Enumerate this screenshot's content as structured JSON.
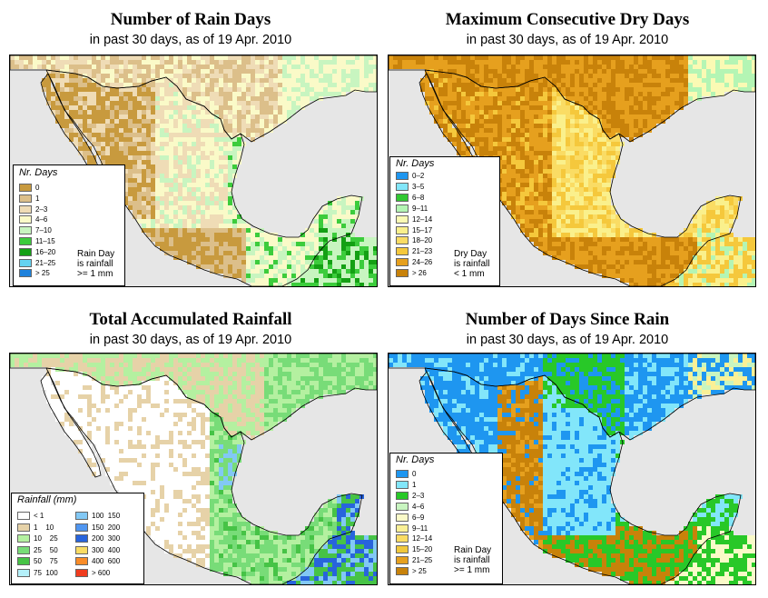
{
  "colors": {
    "ocean": "#e6e6e6",
    "land_outside": "#e6e6e6",
    "border": "#000000"
  },
  "panels": [
    {
      "id": "rain_days",
      "title": "Number of Rain Days",
      "subtitle": "in past 30 days, as of  19 Apr. 2010",
      "legend_title": "Nr. Days",
      "legend_items": [
        {
          "label": "0",
          "color": "#c89a3e"
        },
        {
          "label": "1",
          "color": "#dcbf8a"
        },
        {
          "label": "2–3",
          "color": "#efdcb6"
        },
        {
          "label": "4–6",
          "color": "#fafac8"
        },
        {
          "label": "7–10",
          "color": "#c8f5c0"
        },
        {
          "label": "11–15",
          "color": "#3ccc3c"
        },
        {
          "label": "16–20",
          "color": "#14a014"
        },
        {
          "label": "21–25",
          "color": "#64d2f0"
        },
        {
          "label": "> 25",
          "color": "#1e82dc"
        }
      ],
      "note": [
        "Rain Day",
        "is rainfall",
        ">= 1 mm"
      ]
    },
    {
      "id": "max_dry_days",
      "title": "Maximum Consecutive Dry Days",
      "subtitle": "in past 30 days, as of  19 Apr. 2010",
      "legend_title": "Nr. Days",
      "legend_items": [
        {
          "label": "0–2",
          "color": "#1e96f0"
        },
        {
          "label": "3–5",
          "color": "#82e6fa"
        },
        {
          "label": "6–8",
          "color": "#32c832"
        },
        {
          "label": "9–11",
          "color": "#b4f5b4"
        },
        {
          "label": "12–14",
          "color": "#fafab4"
        },
        {
          "label": "15–17",
          "color": "#faf08c"
        },
        {
          "label": "18–20",
          "color": "#fadc64"
        },
        {
          "label": "21–23",
          "color": "#f5c83c"
        },
        {
          "label": "24–26",
          "color": "#e6a01e"
        },
        {
          "label": "> 26",
          "color": "#c8820a"
        }
      ],
      "note": [
        "Dry Day",
        "is rainfall",
        "< 1 mm"
      ]
    },
    {
      "id": "total_rainfall",
      "title": "Total Accumulated Rainfall",
      "subtitle": "in past 30 days, as of  19 Apr. 2010",
      "legend_title": "Rainfall (mm)",
      "legend_items": [
        {
          "label": "< 1",
          "color": "#ffffff"
        },
        {
          "label": "1    10",
          "color": "#e6d2a8"
        },
        {
          "label": "10    25",
          "color": "#b4f0a0"
        },
        {
          "label": "25    50",
          "color": "#78dc78"
        },
        {
          "label": "50    75",
          "color": "#46c346"
        },
        {
          "label": "75  100",
          "color": "#b4f0fa"
        },
        {
          "label": "100  150",
          "color": "#82c8f5"
        },
        {
          "label": "150  200",
          "color": "#5096f0"
        },
        {
          "label": "200  300",
          "color": "#2864dc"
        },
        {
          "label": "300  400",
          "color": "#fadc64"
        },
        {
          "label": "400  600",
          "color": "#fa8c28"
        },
        {
          "label": "> 600",
          "color": "#f03c1e"
        }
      ],
      "note": []
    },
    {
      "id": "days_since_rain",
      "title": "Number of Days Since Rain",
      "subtitle": "in past 30 days, as of  19 Apr. 2010",
      "legend_title": "Nr. Days",
      "legend_items": [
        {
          "label": "0",
          "color": "#1e96f0"
        },
        {
          "label": "1",
          "color": "#82e6fa"
        },
        {
          "label": "2–3",
          "color": "#28c828"
        },
        {
          "label": "4–6",
          "color": "#c8f5c0"
        },
        {
          "label": "6–9",
          "color": "#fafac8"
        },
        {
          "label": "9–11",
          "color": "#faf096"
        },
        {
          "label": "12–14",
          "color": "#fadc64"
        },
        {
          "label": "15–20",
          "color": "#f0c83c"
        },
        {
          "label": "21–25",
          "color": "#e6a01e"
        },
        {
          "label": "> 25",
          "color": "#c8820a"
        }
      ],
      "note": [
        "Rain Day",
        "is rainfall",
        ">= 1 mm"
      ]
    }
  ]
}
